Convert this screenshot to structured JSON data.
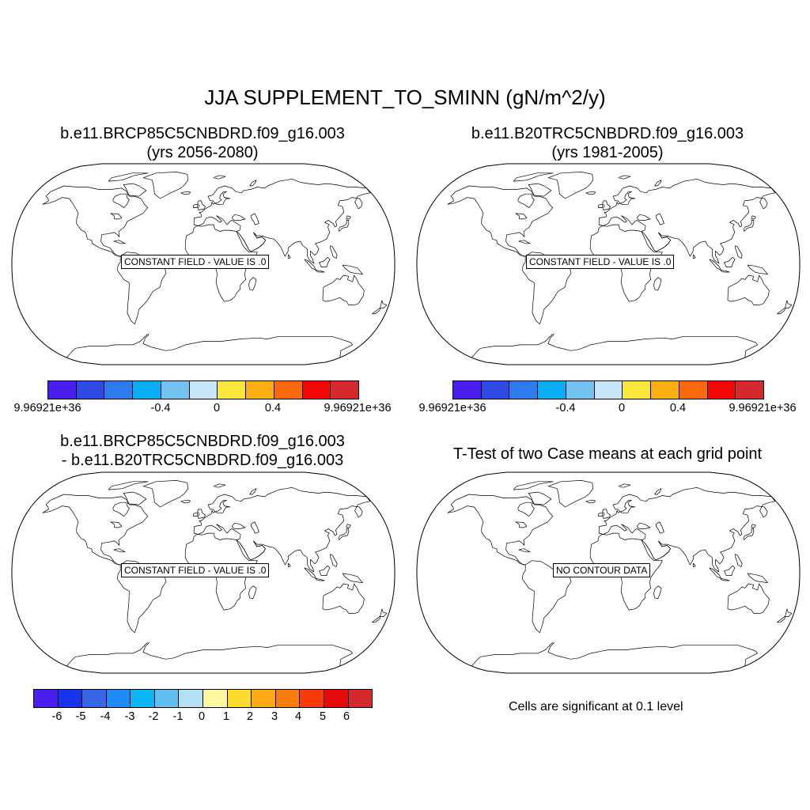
{
  "title": "JJA SUPPLEMENT_TO_SMINN (gN/m^2/y)",
  "panels": [
    {
      "title_line1": "b.e11.BRCP85C5CNBDRD.f09_g16.003",
      "title_line2": "(yrs 2056-2080)",
      "label": "CONSTANT FIELD - VALUE IS .0",
      "colorbar": {
        "colors": [
          "#4B1EF0",
          "#2E4BE8",
          "#2D7BEF",
          "#08AEF5",
          "#72C3F0",
          "#C6E6F5",
          "#FBE63C",
          "#FBAE14",
          "#FA6A0C",
          "#F50808",
          "#D42A2E"
        ],
        "labels": [
          "9.96921e+36",
          "-0.4",
          "0",
          "0.4",
          "9.96921e+36"
        ]
      }
    },
    {
      "title_line1": "b.e11.B20TRC5CNBDRD.f09_g16.003",
      "title_line2": "(yrs 1981-2005)",
      "label": "CONSTANT FIELD - VALUE IS .0",
      "colorbar": {
        "colors": [
          "#4B1EF0",
          "#2E4BE8",
          "#2D7BEF",
          "#08AEF5",
          "#72C3F0",
          "#C6E6F5",
          "#FBE63C",
          "#FBAE14",
          "#FA6A0C",
          "#F50808",
          "#D42A2E"
        ],
        "labels": [
          "9.96921e+36",
          "-0.4",
          "0",
          "0.4",
          "9.96921e+36"
        ]
      }
    },
    {
      "title_line1": "b.e11.BRCP85C5CNBDRD.f09_g16.003",
      "title_line2": "- b.e11.B20TRC5CNBDRD.f09_g16.003",
      "label": "CONSTANT FIELD - VALUE IS .0",
      "colorbar": {
        "colors": [
          "#4B1EF0",
          "#1933EA",
          "#3766E6",
          "#1E8CF8",
          "#0BB4F7",
          "#60BEF0",
          "#B4DFF5",
          "#FDF7A0",
          "#FDDB2C",
          "#FBAA14",
          "#FA7E0E",
          "#FA3A0A",
          "#E60A0A",
          "#D42A2E"
        ],
        "labels": [
          "-6",
          "-5",
          "-4",
          "-3",
          "-2",
          "-1",
          "0",
          "1",
          "2",
          "3",
          "4",
          "5",
          "6"
        ]
      }
    },
    {
      "title_line1": "T-Test of two Case means at each grid point",
      "label": "NO CONTOUR DATA",
      "note": "Cells are significant at 0.1 level"
    }
  ]
}
